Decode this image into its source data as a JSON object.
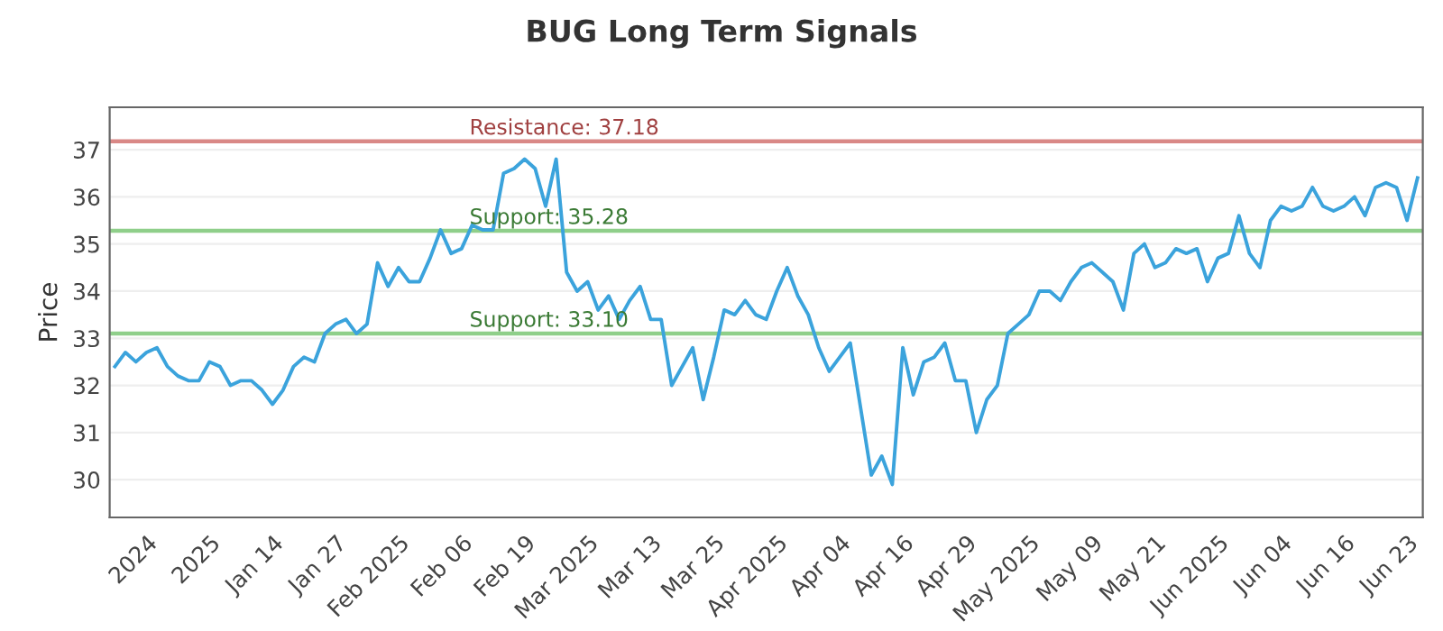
{
  "chart_data": {
    "type": "line",
    "title": "BUG Long Term Signals",
    "ylabel": "Price",
    "categories": [
      null,
      null,
      null,
      "2024",
      null,
      null,
      null,
      null,
      null,
      "2025",
      null,
      null,
      null,
      null,
      null,
      "Jan 14",
      null,
      null,
      null,
      null,
      null,
      "Jan 27",
      null,
      null,
      null,
      null,
      null,
      "Feb 2025",
      null,
      null,
      null,
      null,
      null,
      "Feb 06",
      null,
      null,
      null,
      null,
      null,
      "Feb 19",
      null,
      null,
      null,
      null,
      null,
      "Mar 2025",
      null,
      null,
      null,
      null,
      null,
      "Mar 13",
      null,
      null,
      null,
      null,
      null,
      "Mar 25",
      null,
      null,
      null,
      null,
      null,
      "Apr 2025",
      null,
      null,
      null,
      null,
      null,
      "Apr 04",
      null,
      null,
      null,
      null,
      null,
      "Apr 16",
      null,
      null,
      null,
      null,
      null,
      "Apr 29",
      null,
      null,
      null,
      null,
      null,
      "May 2025",
      null,
      null,
      null,
      null,
      null,
      "May 09",
      null,
      null,
      null,
      null,
      null,
      "May 21",
      null,
      null,
      null,
      null,
      null,
      "Jun 2025",
      null,
      null,
      null,
      null,
      null,
      "Jun 04",
      null,
      null,
      null,
      null,
      null,
      "Jun 16",
      null,
      null,
      null,
      null,
      null,
      "Jun 23",
      null
    ],
    "series": [
      {
        "color": "#3ba3dc",
        "values": [
          32.4,
          32.7,
          32.5,
          32.7,
          32.8,
          32.4,
          32.2,
          32.1,
          32.1,
          32.5,
          32.4,
          32.0,
          32.1,
          32.1,
          31.9,
          31.6,
          31.9,
          32.4,
          32.6,
          32.5,
          33.1,
          33.3,
          33.4,
          33.1,
          33.3,
          34.6,
          34.1,
          34.5,
          34.2,
          34.2,
          34.7,
          35.3,
          34.8,
          34.9,
          35.4,
          35.3,
          35.3,
          36.5,
          36.6,
          36.8,
          36.6,
          35.8,
          36.8,
          34.4,
          34.0,
          34.2,
          33.6,
          33.9,
          33.4,
          33.8,
          34.1,
          33.4,
          33.4,
          32.0,
          32.4,
          32.8,
          31.7,
          32.6,
          33.6,
          33.5,
          33.8,
          33.5,
          33.4,
          34.0,
          34.5,
          33.9,
          33.5,
          32.8,
          32.3,
          32.6,
          32.9,
          31.5,
          30.1,
          30.5,
          29.9,
          32.8,
          31.8,
          32.5,
          32.6,
          32.9,
          32.1,
          32.1,
          31.0,
          31.7,
          32.0,
          33.1,
          33.3,
          33.5,
          34.0,
          34.0,
          33.8,
          34.2,
          34.5,
          34.6,
          34.4,
          34.2,
          33.6,
          34.8,
          35.0,
          34.5,
          34.6,
          34.9,
          34.8,
          34.9,
          34.2,
          34.7,
          34.8,
          35.6,
          34.8,
          34.5,
          35.5,
          35.8,
          35.7,
          35.8,
          36.2,
          35.8,
          35.7,
          35.8,
          36.0,
          35.6,
          36.2,
          36.3,
          36.2,
          35.5,
          36.4
        ]
      }
    ],
    "ylim": [
      29.2,
      37.9
    ],
    "yticks": [
      30,
      31,
      32,
      33,
      34,
      35,
      36,
      37
    ],
    "grid": "y",
    "ref_lines": [
      {
        "axis": "y",
        "value": 37.18,
        "label": "Resistance: 37.18",
        "color": "#d98886"
      },
      {
        "axis": "y",
        "value": 35.28,
        "label": "Support: 35.28",
        "color": "#8fcf8a"
      },
      {
        "axis": "y",
        "value": 33.1,
        "label": "Support: 33.10",
        "color": "#8fcf8a"
      }
    ]
  }
}
